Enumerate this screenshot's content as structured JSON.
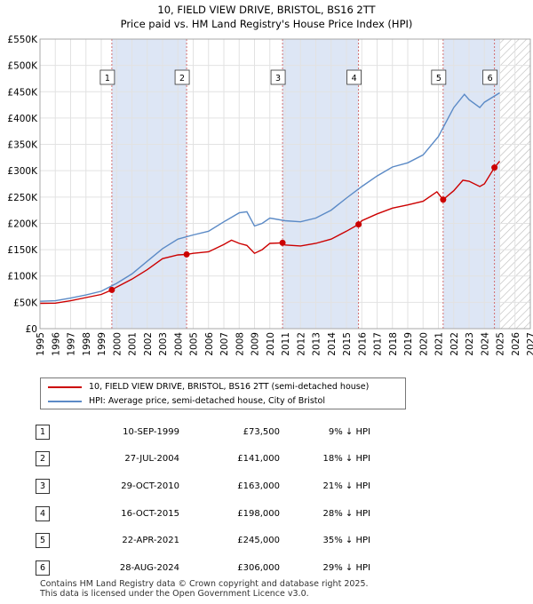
{
  "title": "10, FIELD VIEW DRIVE, BRISTOL, BS16 2TT",
  "subtitle": "Price paid vs. HM Land Registry's House Price Index (HPI)",
  "colors": {
    "property": "#cc0000",
    "hpi": "#5b8ac6",
    "band": "#dde6f5",
    "marker_line": "#d06060"
  },
  "legend": {
    "property_label": "10, FIELD VIEW DRIVE, BRISTOL, BS16 2TT (semi-detached house)",
    "hpi_label": "HPI: Average price, semi-detached house, City of Bristol"
  },
  "sales": [
    {
      "num": "1",
      "date": "10-SEP-1999",
      "price": "£73,500",
      "hpi": "9% ↓ HPI"
    },
    {
      "num": "2",
      "date": "27-JUL-2004",
      "price": "£141,000",
      "hpi": "18% ↓ HPI"
    },
    {
      "num": "3",
      "date": "29-OCT-2010",
      "price": "£163,000",
      "hpi": "21% ↓ HPI"
    },
    {
      "num": "4",
      "date": "16-OCT-2015",
      "price": "£198,000",
      "hpi": "28% ↓ HPI"
    },
    {
      "num": "5",
      "date": "22-APR-2021",
      "price": "£245,000",
      "hpi": "35% ↓ HPI"
    },
    {
      "num": "6",
      "date": "28-AUG-2024",
      "price": "£306,000",
      "hpi": "29% ↓ HPI"
    }
  ],
  "footer": {
    "line1": "Contains HM Land Registry data © Crown copyright and database right 2025.",
    "line2": "This data is licensed under the Open Government Licence v3.0."
  },
  "chart_data": {
    "type": "line",
    "title": "10, FIELD VIEW DRIVE, BRISTOL, BS16 2TT",
    "subtitle": "Price paid vs. HM Land Registry's House Price Index (HPI)",
    "xlim": [
      1995,
      2027
    ],
    "ylim": [
      0,
      550000
    ],
    "x_ticks": [
      1995,
      1996,
      1997,
      1998,
      1999,
      2000,
      2001,
      2002,
      2003,
      2004,
      2005,
      2006,
      2007,
      2008,
      2009,
      2010,
      2011,
      2012,
      2013,
      2014,
      2015,
      2016,
      2017,
      2018,
      2019,
      2020,
      2021,
      2022,
      2023,
      2024,
      2025,
      2026,
      2027
    ],
    "y_ticks": [
      0,
      50000,
      100000,
      150000,
      200000,
      250000,
      300000,
      350000,
      400000,
      450000,
      500000,
      550000
    ],
    "y_tick_labels": [
      "£0",
      "£50K",
      "£100K",
      "£150K",
      "£200K",
      "£250K",
      "£300K",
      "£350K",
      "£400K",
      "£450K",
      "£500K",
      "£550K"
    ],
    "forecast_start": 2025.0,
    "sale_markers": [
      {
        "label": "1",
        "x": 1999.69,
        "y": 73500
      },
      {
        "label": "2",
        "x": 2004.57,
        "y": 141000
      },
      {
        "label": "3",
        "x": 2010.83,
        "y": 163000
      },
      {
        "label": "4",
        "x": 2015.79,
        "y": 198000
      },
      {
        "label": "5",
        "x": 2021.31,
        "y": 245000
      },
      {
        "label": "6",
        "x": 2024.66,
        "y": 306000
      }
    ],
    "series": [
      {
        "name": "10, FIELD VIEW DRIVE, BRISTOL, BS16 2TT (semi-detached house)",
        "points": [
          [
            1995,
            48000
          ],
          [
            1996,
            48500
          ],
          [
            1997,
            53000
          ],
          [
            1998,
            59000
          ],
          [
            1999,
            65000
          ],
          [
            1999.69,
            73500
          ],
          [
            2000,
            79000
          ],
          [
            2001,
            94000
          ],
          [
            2002,
            112000
          ],
          [
            2003,
            133000
          ],
          [
            2004,
            140000
          ],
          [
            2004.57,
            141000
          ],
          [
            2005,
            143000
          ],
          [
            2006,
            146000
          ],
          [
            2007,
            160000
          ],
          [
            2007.5,
            168000
          ],
          [
            2008,
            162000
          ],
          [
            2008.5,
            158000
          ],
          [
            2009,
            143000
          ],
          [
            2009.5,
            150000
          ],
          [
            2010,
            162000
          ],
          [
            2010.83,
            163000
          ],
          [
            2011,
            159000
          ],
          [
            2012,
            157000
          ],
          [
            2013,
            162000
          ],
          [
            2014,
            170000
          ],
          [
            2015,
            185000
          ],
          [
            2015.79,
            198000
          ],
          [
            2016,
            205000
          ],
          [
            2017,
            218000
          ],
          [
            2018,
            229000
          ],
          [
            2019,
            235000
          ],
          [
            2020,
            242000
          ],
          [
            2020.9,
            260000
          ],
          [
            2021.31,
            245000
          ],
          [
            2022,
            262000
          ],
          [
            2022.6,
            282000
          ],
          [
            2023,
            280000
          ],
          [
            2023.7,
            270000
          ],
          [
            2024,
            275000
          ],
          [
            2024.66,
            306000
          ],
          [
            2025,
            318000
          ]
        ]
      },
      {
        "name": "HPI: Average price, semi-detached house, City of Bristol",
        "points": [
          [
            1995,
            52000
          ],
          [
            1996,
            53000
          ],
          [
            1997,
            58000
          ],
          [
            1998,
            64000
          ],
          [
            1999,
            71000
          ],
          [
            2000,
            86000
          ],
          [
            2001,
            104000
          ],
          [
            2002,
            128000
          ],
          [
            2003,
            152000
          ],
          [
            2004,
            170000
          ],
          [
            2005,
            178000
          ],
          [
            2006,
            185000
          ],
          [
            2007,
            203000
          ],
          [
            2008,
            220000
          ],
          [
            2008.5,
            222000
          ],
          [
            2009,
            195000
          ],
          [
            2009.5,
            200000
          ],
          [
            2010,
            210000
          ],
          [
            2011,
            205000
          ],
          [
            2012,
            203000
          ],
          [
            2013,
            210000
          ],
          [
            2014,
            225000
          ],
          [
            2015,
            248000
          ],
          [
            2016,
            270000
          ],
          [
            2017,
            290000
          ],
          [
            2018,
            307000
          ],
          [
            2019,
            315000
          ],
          [
            2020,
            330000
          ],
          [
            2021,
            365000
          ],
          [
            2022,
            420000
          ],
          [
            2022.7,
            445000
          ],
          [
            2023,
            435000
          ],
          [
            2023.7,
            420000
          ],
          [
            2024,
            430000
          ],
          [
            2025,
            448000
          ]
        ]
      }
    ]
  }
}
